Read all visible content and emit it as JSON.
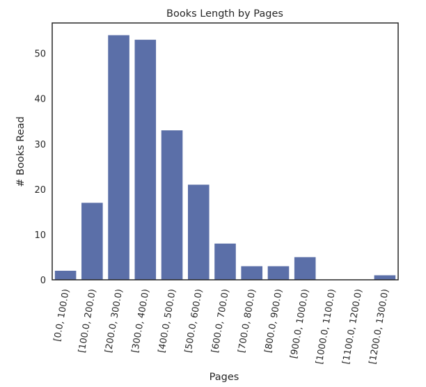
{
  "chart_data": {
    "type": "bar",
    "title": "Books Length by Pages",
    "xlabel": "Pages",
    "ylabel": "# Books Read",
    "categories": [
      "[0.0, 100.0)",
      "[100.0, 200.0)",
      "[200.0, 300.0)",
      "[300.0, 400.0)",
      "[400.0, 500.0)",
      "[500.0, 600.0)",
      "[600.0, 700.0)",
      "[700.0, 800.0)",
      "[800.0, 900.0)",
      "[900.0, 1000.0)",
      "[1000.0, 1100.0)",
      "[1100.0, 1200.0)",
      "[1200.0, 1300.0)"
    ],
    "values": [
      2,
      17,
      54,
      53,
      33,
      21,
      8,
      3,
      3,
      5,
      0,
      0,
      1
    ],
    "ylim": [
      0,
      56.7
    ],
    "yticks": [
      0,
      10,
      20,
      30,
      40,
      50
    ],
    "bar_color": "#5b6fa8",
    "grid": false
  }
}
